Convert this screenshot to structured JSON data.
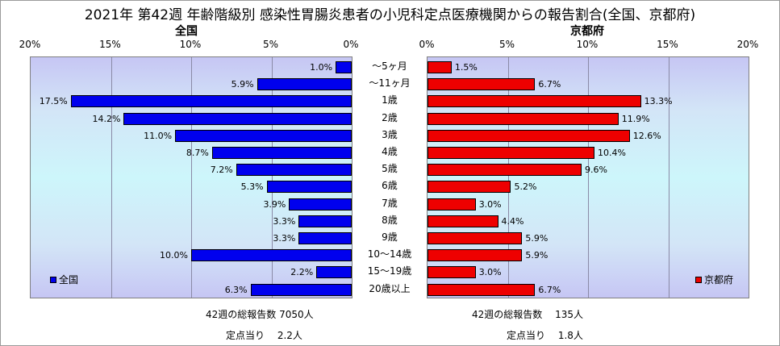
{
  "title": "2021年 第42週 年齢階級別 感染性胃腸炎患者の小児科定点医療機関からの報告割合(全国、京都府)",
  "chart_data": {
    "type": "bar",
    "categories": [
      "～5ヶ月",
      "～11ヶ月",
      "1歳",
      "2歳",
      "3歳",
      "4歳",
      "5歳",
      "6歳",
      "7歳",
      "8歳",
      "9歳",
      "10～14歳",
      "15～19歳",
      "20歳以上"
    ],
    "series": [
      {
        "name": "全国",
        "values": [
          1.0,
          5.9,
          17.5,
          14.2,
          11.0,
          8.7,
          7.2,
          5.3,
          3.9,
          3.3,
          3.3,
          10.0,
          2.2,
          6.3
        ],
        "labels": [
          "1.0%",
          "5.9%",
          "17.5%",
          "14.2%",
          "11.0%",
          "8.7%",
          "7.2%",
          "5.3%",
          "3.9%",
          "3.3%",
          "3.3%",
          "10.0%",
          "2.2%",
          "6.3%"
        ]
      },
      {
        "name": "京都府",
        "values": [
          1.5,
          6.7,
          13.3,
          11.9,
          12.6,
          10.4,
          9.6,
          5.2,
          3.0,
          4.4,
          5.9,
          5.9,
          3.0,
          6.7
        ],
        "labels": [
          "1.5%",
          "6.7%",
          "13.3%",
          "11.9%",
          "12.6%",
          "10.4%",
          "9.6%",
          "5.2%",
          "3.0%",
          "4.4%",
          "5.9%",
          "5.9%",
          "3.0%",
          "6.7%"
        ]
      }
    ],
    "left_panel": {
      "title": "全国",
      "ticks": [
        "20%",
        "15%",
        "10%",
        "5%",
        "0%"
      ],
      "tick_values": [
        20,
        15,
        10,
        5,
        0
      ],
      "xlim": [
        0,
        20
      ],
      "legend": "全国",
      "footer_total": "42週の総報告数 7050人",
      "footer_per": "定点当り　 2.2人"
    },
    "right_panel": {
      "title": "京都府",
      "ticks": [
        "0%",
        "5%",
        "10%",
        "15%",
        "20%"
      ],
      "tick_values": [
        0,
        5,
        10,
        15,
        20
      ],
      "xlim": [
        0,
        20
      ],
      "legend": "京都府",
      "footer_total": "42週の総報告数　 135人",
      "footer_per": "定点当り　 1.8人"
    },
    "colors": {
      "national": "#0000ee",
      "kyoto": "#ee0000"
    },
    "orientation": "horizontal, mirrored (population-pyramid style)",
    "grid": true,
    "legend_position": "bottom-left (national), bottom-right (Kyoto)"
  }
}
